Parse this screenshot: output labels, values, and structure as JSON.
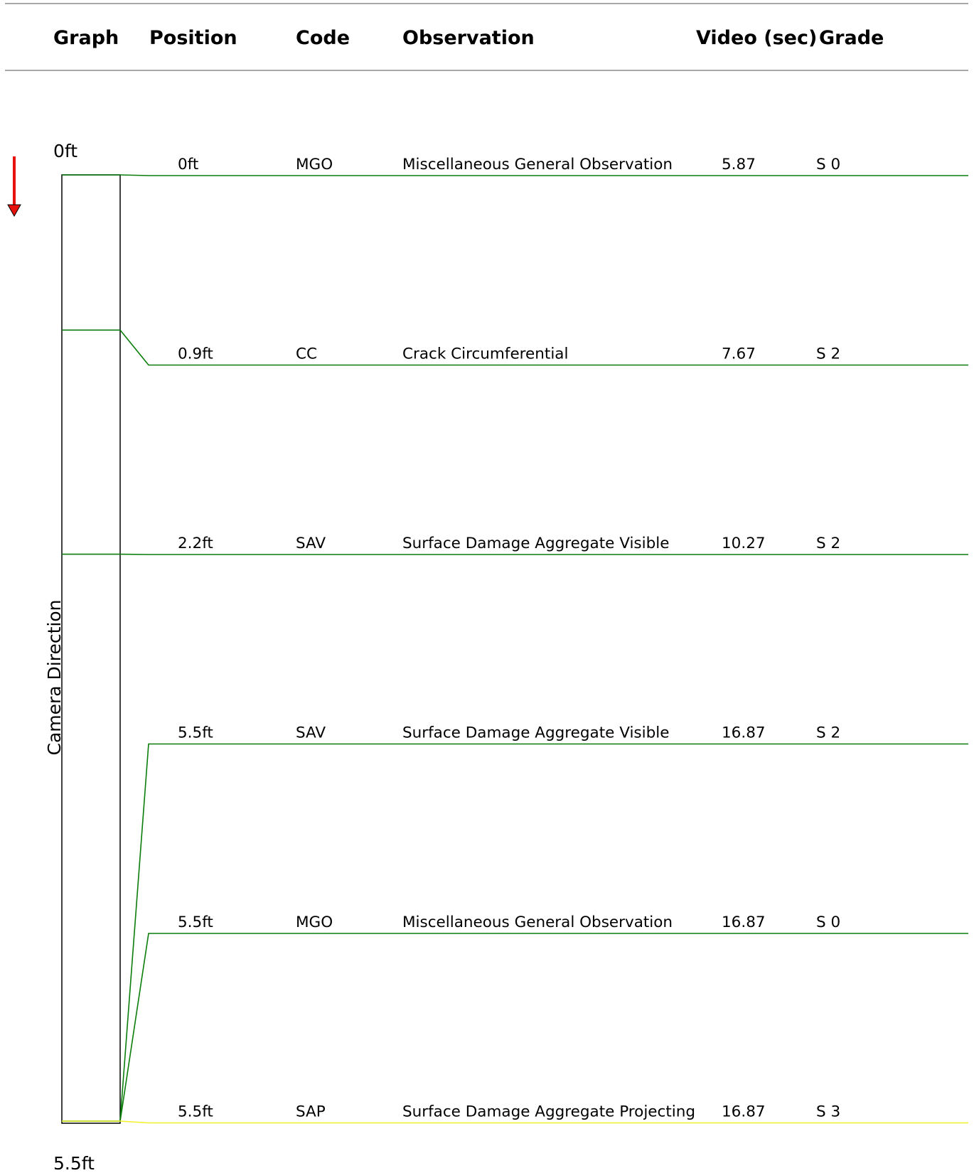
{
  "header": {
    "graph": "Graph",
    "position": "Position",
    "code": "Code",
    "observation": "Observation",
    "video": "Video (sec)",
    "grade": "Grade"
  },
  "graph": {
    "start_label": "0ft",
    "end_label": "5.5ft",
    "axis_title": "Camera Direction",
    "start_ft": 0,
    "end_ft": 5.5,
    "direction_arrow_color": "#e8120c"
  },
  "colors": {
    "grade_0": "#0a7d0a",
    "grade_2": "#0a7d0a",
    "grade_3": "#f2f22a",
    "rule": "#a8a8a8"
  },
  "observations": [
    {
      "position": "0ft",
      "position_ft": 0,
      "code": "MGO",
      "observation": "Miscellaneous General Observation",
      "video_sec": "5.87",
      "grade": "S 0",
      "grade_level": 0
    },
    {
      "position": "0.9ft",
      "position_ft": 0.9,
      "code": "CC",
      "observation": "Crack Circumferential",
      "video_sec": "7.67",
      "grade": "S 2",
      "grade_level": 2
    },
    {
      "position": "2.2ft",
      "position_ft": 2.2,
      "code": "SAV",
      "observation": "Surface Damage Aggregate Visible",
      "video_sec": "10.27",
      "grade": "S 2",
      "grade_level": 2
    },
    {
      "position": "5.5ft",
      "position_ft": 5.5,
      "code": "SAV",
      "observation": "Surface Damage Aggregate Visible",
      "video_sec": "16.87",
      "grade": "S 2",
      "grade_level": 2
    },
    {
      "position": "5.5ft",
      "position_ft": 5.5,
      "code": "MGO",
      "observation": "Miscellaneous General Observation",
      "video_sec": "16.87",
      "grade": "S 0",
      "grade_level": 0
    },
    {
      "position": "5.5ft",
      "position_ft": 5.5,
      "code": "SAP",
      "observation": "Surface Damage Aggregate Projecting",
      "video_sec": "16.87",
      "grade": "S 3",
      "grade_level": 3
    }
  ]
}
